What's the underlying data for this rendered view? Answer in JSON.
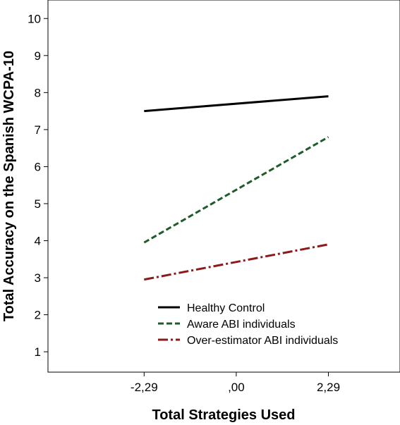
{
  "chart_data": {
    "type": "line",
    "xlabel": "Total Strategies Used",
    "ylabel": "Total Accuracy on the Spanish WCPA-10",
    "x_values": [
      -2.29,
      2.29
    ],
    "x_ticks": [
      {
        "value": -2.29,
        "label": "-2,29"
      },
      {
        "value": 0,
        "label": ",00"
      },
      {
        "value": 2.29,
        "label": "2,29"
      }
    ],
    "xlim": [
      -4.68,
      4.07
    ],
    "ylim": [
      0.45,
      10.5
    ],
    "y_ticks": [
      {
        "value": 1,
        "label": "1"
      },
      {
        "value": 2,
        "label": "2"
      },
      {
        "value": 3,
        "label": "3"
      },
      {
        "value": 4,
        "label": "4"
      },
      {
        "value": 5,
        "label": "5"
      },
      {
        "value": 6,
        "label": "6"
      },
      {
        "value": 7,
        "label": "7"
      },
      {
        "value": 8,
        "label": "8"
      },
      {
        "value": 9,
        "label": "9"
      },
      {
        "value": 10,
        "label": "10"
      }
    ],
    "grid": false,
    "legend_position": "bottom-right",
    "series": [
      {
        "name": "Healthy Control",
        "values": [
          7.5,
          7.9
        ],
        "color": "#000000",
        "dash": "solid"
      },
      {
        "name": "Aware ABI individuals",
        "values": [
          3.95,
          6.8
        ],
        "color": "#1f5c2a",
        "dash": "dashed"
      },
      {
        "name": "Over-estimator ABI individuals",
        "values": [
          2.95,
          3.9
        ],
        "color": "#8b1a1a",
        "dash": "dash-dot"
      }
    ]
  }
}
